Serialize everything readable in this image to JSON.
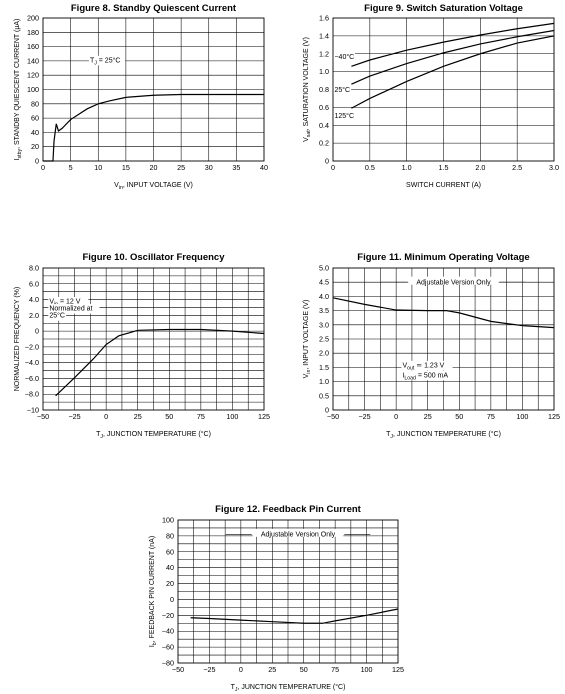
{
  "chart_data": [
    {
      "type": "line",
      "title": "Figure 8. Standby Quiescent Current",
      "xlabel": "V in, INPUT VOLTAGE (V)",
      "xlabel_main": "V",
      "xlabel_sub": "in",
      "xlabel_rest": ", INPUT VOLTAGE (V)",
      "ylabel_main": "I",
      "ylabel_sub": "stby",
      "ylabel_rest": ", STANDBY QUIESCENT CURRENT (µA)",
      "xlim": [
        0,
        40
      ],
      "ylim": [
        0,
        200
      ],
      "xticks": [
        0,
        5,
        10,
        15,
        20,
        25,
        30,
        35,
        40
      ],
      "yticks": [
        0,
        20,
        40,
        60,
        80,
        100,
        120,
        140,
        160,
        180,
        200
      ],
      "xgrid_step": 5,
      "ygrid_step": 20,
      "annotations": [
        {
          "main": "T",
          "sub": "J",
          "rest": " = 25°C",
          "x": 8.5,
          "y": 138
        }
      ],
      "series": [
        {
          "x": [
            0,
            1.8,
            2.0,
            2.4,
            2.8,
            3.5,
            5,
            8,
            10,
            12,
            15,
            20,
            25,
            30,
            35,
            40
          ],
          "y": [
            0,
            0,
            28,
            52,
            42,
            46,
            58,
            73,
            80,
            84,
            89,
            92,
            93,
            93,
            93,
            93
          ]
        }
      ]
    },
    {
      "type": "line",
      "title": "Figure 9. Switch Saturation Voltage",
      "xlabel": "SWITCH CURRENT (A)",
      "ylabel_main": "V",
      "ylabel_sub": "sat",
      "ylabel_rest": ", SATURATION VOLTAGE (V)",
      "xlim": [
        0,
        3.0
      ],
      "ylim": [
        0,
        1.6
      ],
      "xticks": [
        0,
        0.5,
        1.0,
        1.5,
        2.0,
        2.5,
        3.0
      ],
      "xtick_labels": [
        "0",
        "0.5",
        "1.0",
        "1.5",
        "2.0",
        "2.5",
        "3.0"
      ],
      "yticks": [
        0,
        0.2,
        0.4,
        0.6,
        0.8,
        1.0,
        1.2,
        1.4,
        1.6
      ],
      "ytick_labels": [
        "0",
        "0.2",
        "0.4",
        "0.6",
        "0.8",
        "1.0",
        "1.2",
        "1.4",
        "1.6"
      ],
      "xgrid_step": 0.5,
      "ygrid_step": 0.2,
      "series": [
        {
          "name": "−40°C",
          "label_x": 0.02,
          "label_y": 1.14,
          "x": [
            0.25,
            0.5,
            1.0,
            1.5,
            2.0,
            2.5,
            3.0
          ],
          "y": [
            1.06,
            1.13,
            1.24,
            1.33,
            1.41,
            1.48,
            1.54
          ]
        },
        {
          "name": "25°C",
          "label_x": 0.02,
          "label_y": 0.77,
          "x": [
            0.25,
            0.5,
            1.0,
            1.5,
            2.0,
            2.5,
            3.0
          ],
          "y": [
            0.86,
            0.95,
            1.09,
            1.21,
            1.31,
            1.39,
            1.46
          ]
        },
        {
          "name": "125°C",
          "label_x": 0.02,
          "label_y": 0.48,
          "x": [
            0.25,
            0.5,
            1.0,
            1.5,
            2.0,
            2.5,
            3.0
          ],
          "y": [
            0.59,
            0.7,
            0.89,
            1.06,
            1.2,
            1.32,
            1.4
          ]
        }
      ]
    },
    {
      "type": "line",
      "title": "Figure 10. Oscillator Frequency",
      "xlabel_main": "T",
      "xlabel_sub": "J",
      "xlabel_rest": ", JUNCTION TEMPERATURE (°C)",
      "ylabel": "NORMALIZED FREQUENCY (%)",
      "xlim": [
        -50,
        125
      ],
      "ylim": [
        -10,
        8
      ],
      "xticks": [
        -50,
        -25,
        0,
        25,
        50,
        75,
        100,
        125
      ],
      "xtick_labels": [
        "−50",
        "−25",
        "0",
        "25",
        "50",
        "75",
        "100",
        "125"
      ],
      "yticks": [
        -10,
        -8,
        -6,
        -4,
        -2,
        0,
        2,
        4,
        6,
        8
      ],
      "ytick_labels": [
        "−10",
        "−8.0",
        "−6.0",
        "−4.0",
        "−2.0",
        "0",
        "2.0",
        "4.0",
        "6.0",
        "8.0"
      ],
      "xgrid_step": 12.5,
      "ygrid_step": 1,
      "annotations": [
        {
          "main": "V",
          "sub": "in",
          "rest": " = 12 V",
          "x": -45,
          "y": 3.5
        },
        {
          "main": "Normalized at",
          "sub": "",
          "rest": "",
          "x": -45,
          "y": 2.6
        },
        {
          "main": "25°C",
          "sub": "",
          "rest": "",
          "x": -45,
          "y": 1.7
        }
      ],
      "series": [
        {
          "x": [
            -40,
            -25,
            -10,
            0,
            10,
            25,
            50,
            75,
            100,
            125
          ],
          "y": [
            -8.2,
            -5.9,
            -3.5,
            -1.7,
            -0.6,
            0.1,
            0.2,
            0.2,
            0.0,
            -0.3
          ]
        }
      ]
    },
    {
      "type": "line",
      "title": "Figure 11. Minimum Operating Voltage",
      "xlabel_main": "T",
      "xlabel_sub": "J",
      "xlabel_rest": ", JUNCTION TEMPERATURE (°C)",
      "ylabel_main": "V",
      "ylabel_sub": "in",
      "ylabel_rest": ", INPUT VOLTAGE (V)",
      "xlim": [
        -50,
        125
      ],
      "ylim": [
        0,
        5.0
      ],
      "xticks": [
        -50,
        -25,
        0,
        25,
        50,
        75,
        100,
        125
      ],
      "xtick_labels": [
        "−50",
        "−25",
        "0",
        "25",
        "50",
        "75",
        "100",
        "125"
      ],
      "yticks": [
        0,
        0.5,
        1.0,
        1.5,
        2.0,
        2.5,
        3.0,
        3.5,
        4.0,
        4.5,
        5.0
      ],
      "ytick_labels": [
        "0",
        "0.5",
        "1.0",
        "1.5",
        "2.0",
        "2.5",
        "3.0",
        "3.5",
        "4.0",
        "4.5",
        "5.0"
      ],
      "xgrid_step": 12.5,
      "ygrid_step": 0.5,
      "legend_text": "Adjustable Version Only",
      "annotations": [
        {
          "main": "V",
          "sub": "out",
          "rest": " ≃ 1.23 V",
          "x": 5,
          "y": 1.5
        },
        {
          "main": "I",
          "sub": "Load",
          "rest": " = 500 mA",
          "x": 5,
          "y": 1.15
        }
      ],
      "series": [
        {
          "x": [
            -50,
            -25,
            0,
            25,
            40,
            50,
            75,
            100,
            125
          ],
          "y": [
            3.95,
            3.72,
            3.52,
            3.5,
            3.5,
            3.42,
            3.12,
            2.97,
            2.9
          ]
        }
      ]
    },
    {
      "type": "line",
      "title": "Figure 12. Feedback Pin Current",
      "xlabel_main": "T",
      "xlabel_sub": "J",
      "xlabel_rest": ", JUNCTION TEMPERATURE (°C)",
      "ylabel_main": "I",
      "ylabel_sub": "b",
      "ylabel_rest": ", FEEDBACK PIN CURRENT (nA)",
      "xlim": [
        -50,
        125
      ],
      "ylim": [
        -80,
        100
      ],
      "xticks": [
        -50,
        -25,
        0,
        25,
        50,
        75,
        100,
        125
      ],
      "xtick_labels": [
        "−50",
        "−25",
        "0",
        "25",
        "50",
        "75",
        "100",
        "125"
      ],
      "yticks": [
        -80,
        -60,
        -40,
        -20,
        0,
        20,
        40,
        60,
        80,
        100
      ],
      "ytick_labels": [
        "−80",
        "−60",
        "−40",
        "−20",
        "0",
        "20",
        "40",
        "60",
        "80",
        "100"
      ],
      "xgrid_step": 12.5,
      "ygrid_step": 10,
      "legend_text": "Adjustable Version Only",
      "series": [
        {
          "x": [
            -40,
            -25,
            0,
            25,
            50,
            65,
            75,
            100,
            125
          ],
          "y": [
            -23,
            -24,
            -26,
            -28,
            -30,
            -30,
            -27,
            -20,
            -12
          ]
        }
      ]
    }
  ]
}
